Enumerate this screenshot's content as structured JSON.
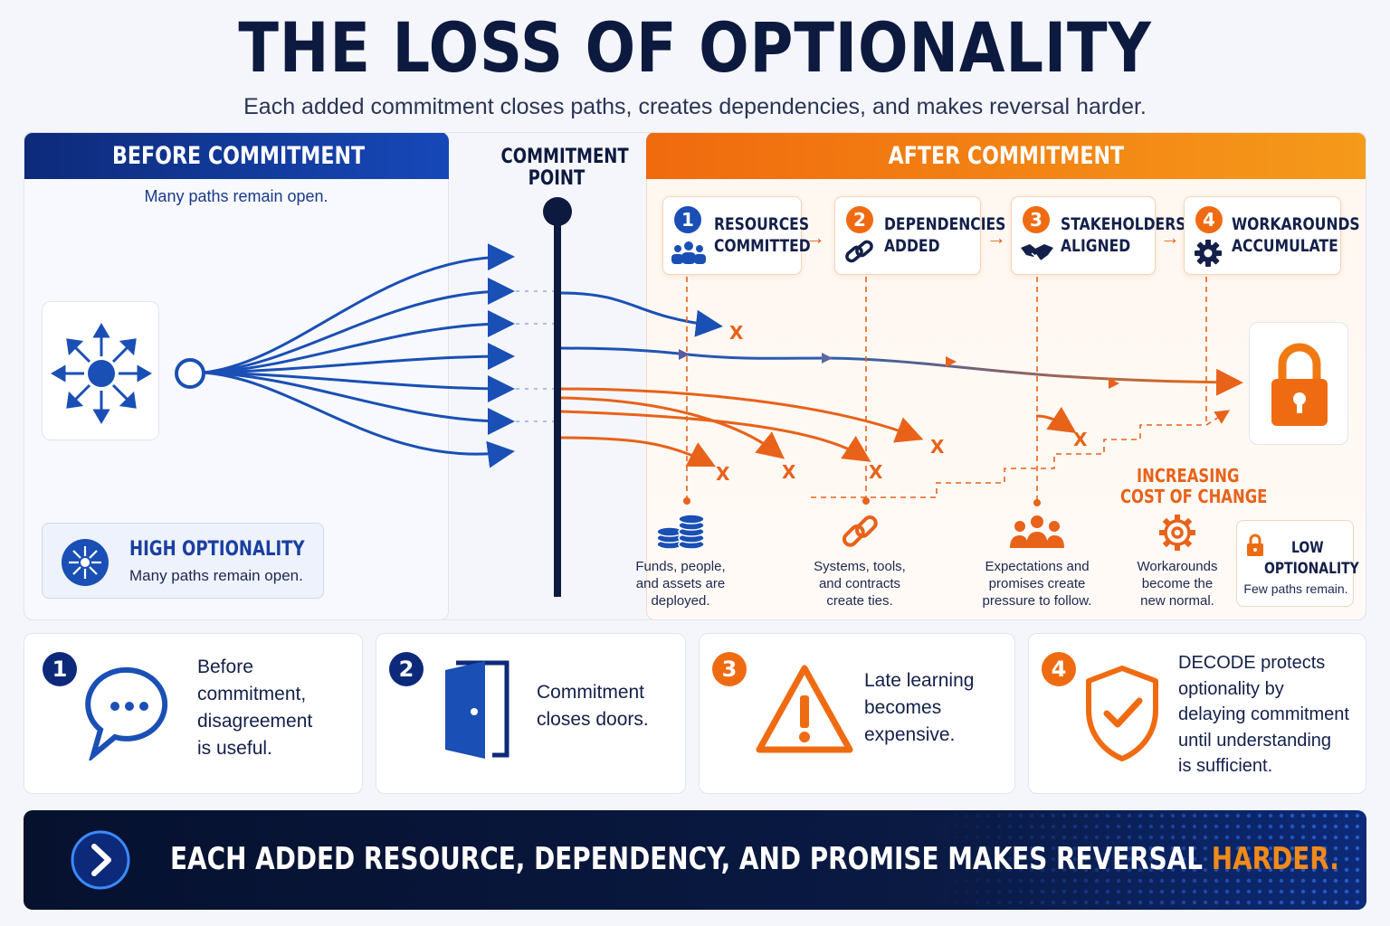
{
  "title": "THE LOSS OF OPTIONALITY",
  "subtitle": "Each added commitment closes paths, creates dependencies, and makes reversal harder.",
  "before": {
    "heading": "BEFORE COMMITMENT",
    "caption": "Many paths remain open.",
    "high_title": "HIGH OPTIONALITY",
    "high_caption": "Many paths remain open."
  },
  "commitment_point": [
    "COMMITMENT",
    "POINT"
  ],
  "after": {
    "heading": "AFTER COMMITMENT",
    "steps": [
      {
        "num": "1",
        "line1": "RESOURCES",
        "line2": "COMMITTED",
        "icon": "people-icon"
      },
      {
        "num": "2",
        "line1": "DEPENDENCIES",
        "line2": "ADDED",
        "icon": "link-icon"
      },
      {
        "num": "3",
        "line1": "STAKEHOLDERS",
        "line2": "ALIGNED",
        "icon": "handshake-icon"
      },
      {
        "num": "4",
        "line1": "WORKAROUNDS",
        "line2": "ACCUMULATE",
        "icon": "gear-icon"
      }
    ],
    "cost_line1": "INCREASING",
    "cost_line2": "COST OF CHANGE",
    "effects": [
      {
        "lines": [
          "Funds, people,",
          "and assets are",
          "deployed."
        ],
        "icon": "coins-icon"
      },
      {
        "lines": [
          "Systems, tools,",
          "and contracts",
          "create ties."
        ],
        "icon": "chain-icon"
      },
      {
        "lines": [
          "Expectations and",
          "promises create",
          "pressure to follow."
        ],
        "icon": "group-icon"
      },
      {
        "lines": [
          "Workarounds",
          "become the",
          "new normal."
        ],
        "icon": "cog-icon"
      }
    ],
    "low_line1": "LOW",
    "low_line2": "OPTIONALITY",
    "low_caption": "Few paths remain.",
    "x_mark": "X"
  },
  "cards": [
    {
      "num": "1",
      "lines": [
        "Before",
        "commitment,",
        "disagreement",
        "is useful."
      ],
      "icon": "chat-icon"
    },
    {
      "num": "2",
      "lines": [
        "Commitment",
        "closes doors."
      ],
      "icon": "door-icon"
    },
    {
      "num": "3",
      "lines": [
        "Late learning",
        "becomes",
        "expensive."
      ],
      "icon": "warning-icon"
    },
    {
      "num": "4",
      "lines": [
        "DECODE protects",
        "optionality by",
        "delaying commitment",
        "until understanding",
        "is sufficient."
      ],
      "icon": "shield-check-icon"
    }
  ],
  "banner": {
    "text": "EACH ADDED RESOURCE, DEPENDENCY, AND PROMISE MAKES REVERSAL ",
    "highlight": "HARDER."
  },
  "colors": {
    "navy": "#0d2a7a",
    "blue": "#1a4fb5",
    "orange": "#ef6b12"
  }
}
